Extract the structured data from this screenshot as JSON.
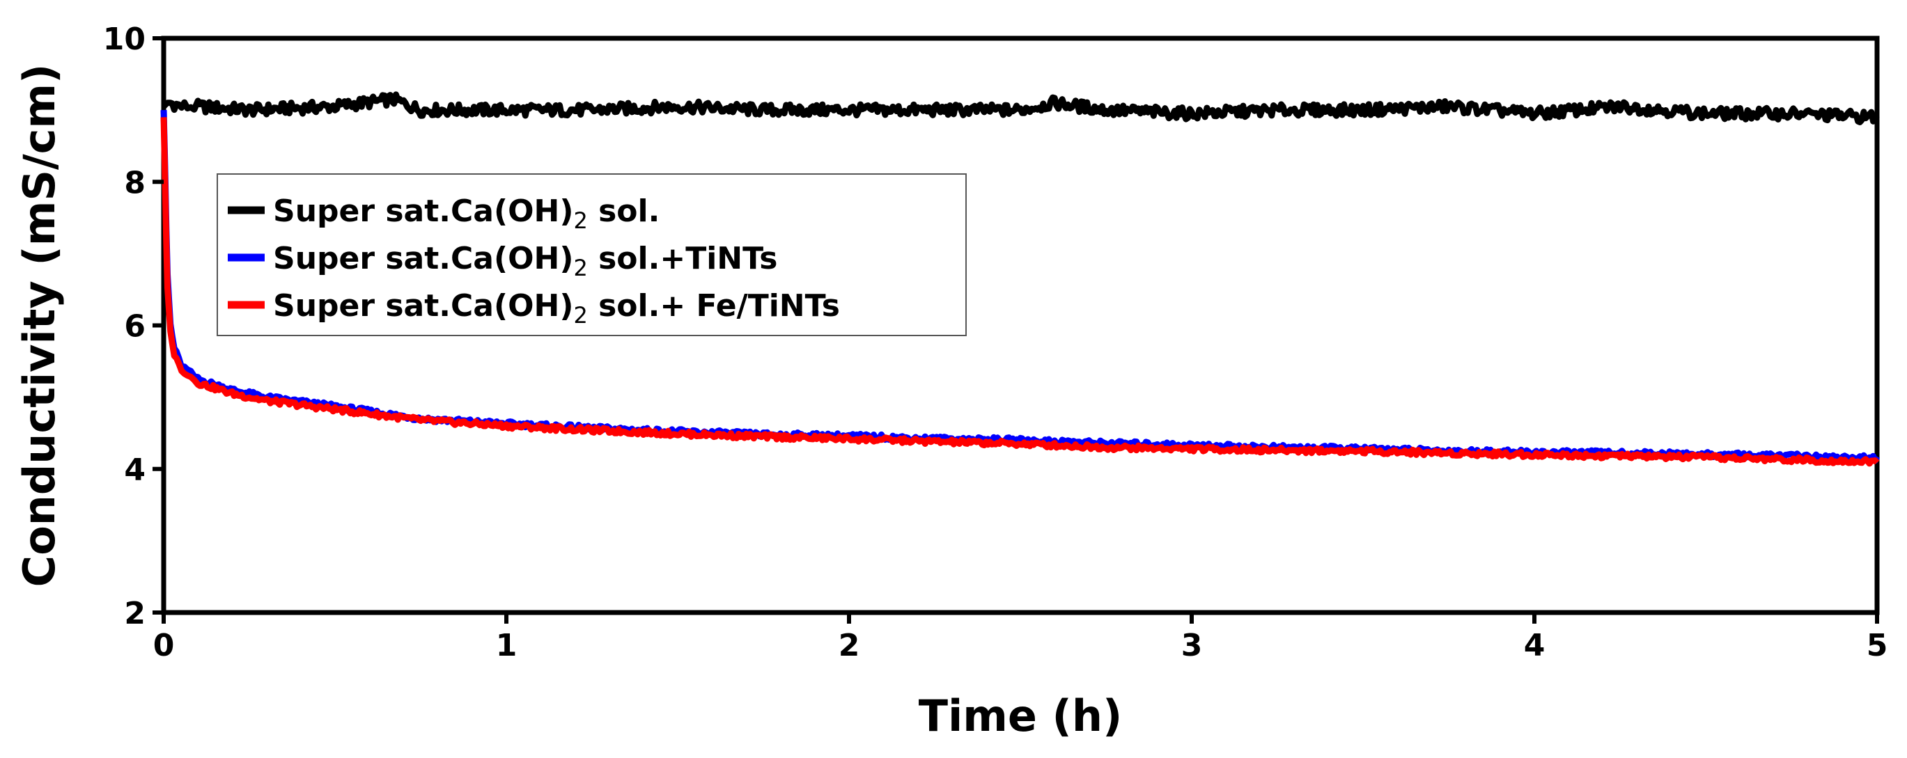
{
  "chart_data": {
    "type": "line",
    "xlabel": "Time (h)",
    "ylabel": "Conductivity (mS/cm)",
    "xlim": [
      0,
      5
    ],
    "ylim": [
      2,
      10
    ],
    "xticks": [
      0,
      1,
      2,
      3,
      4,
      5
    ],
    "yticks": [
      2,
      4,
      6,
      8,
      10
    ],
    "xtick_labels": [
      "0",
      "1",
      "2",
      "3",
      "4",
      "5"
    ],
    "ytick_labels": [
      "2",
      "4",
      "6",
      "8",
      "10"
    ],
    "grid": false,
    "legend_position": "upper-left",
    "series": [
      {
        "legend_parts": [
          "Super sat.Ca(OH)",
          "2",
          " sol."
        ],
        "color": "#000000",
        "x": [
          0.0,
          0.01,
          0.02,
          0.05,
          0.1,
          0.25,
          0.5,
          0.67,
          0.75,
          1.0,
          1.25,
          1.5,
          1.75,
          2.0,
          2.25,
          2.5,
          2.6,
          2.75,
          3.0,
          3.25,
          3.5,
          3.75,
          4.0,
          4.25,
          4.5,
          4.75,
          5.0
        ],
        "values": [
          9.05,
          9.1,
          9.1,
          9.05,
          9.05,
          9.0,
          9.05,
          9.15,
          9.0,
          9.0,
          9.0,
          9.05,
          9.0,
          9.0,
          9.0,
          9.0,
          9.1,
          9.0,
          8.95,
          9.0,
          9.0,
          9.05,
          8.95,
          9.05,
          8.95,
          8.95,
          8.9
        ]
      },
      {
        "legend_parts": [
          "Super sat.Ca(OH)",
          "2",
          " sol.+TiNTs"
        ],
        "color": "#0000ff",
        "x": [
          0.0,
          0.005,
          0.01,
          0.02,
          0.03,
          0.05,
          0.1,
          0.2,
          0.3,
          0.5,
          0.75,
          1.0,
          1.25,
          1.5,
          1.75,
          2.0,
          2.25,
          2.5,
          2.75,
          3.0,
          3.25,
          3.5,
          3.75,
          4.0,
          4.25,
          4.5,
          4.75,
          5.0
        ],
        "values": [
          9.0,
          8.0,
          6.8,
          6.0,
          5.7,
          5.45,
          5.25,
          5.1,
          5.0,
          4.87,
          4.7,
          4.63,
          4.57,
          4.52,
          4.48,
          4.46,
          4.42,
          4.4,
          4.36,
          4.33,
          4.3,
          4.28,
          4.25,
          4.23,
          4.22,
          4.2,
          4.18,
          4.15
        ]
      },
      {
        "legend_parts": [
          "Super sat.Ca(OH)",
          "2",
          " sol.+ Fe/TiNTs"
        ],
        "color": "#ff0000",
        "x": [
          0.0,
          0.005,
          0.01,
          0.02,
          0.03,
          0.05,
          0.1,
          0.2,
          0.3,
          0.5,
          0.75,
          1.0,
          1.25,
          1.5,
          1.75,
          2.0,
          2.25,
          2.5,
          2.75,
          3.0,
          3.25,
          3.5,
          3.75,
          4.0,
          4.25,
          4.5,
          4.75,
          5.0
        ],
        "values": [
          8.9,
          7.8,
          6.6,
          5.9,
          5.6,
          5.4,
          5.2,
          5.05,
          4.95,
          4.83,
          4.68,
          4.6,
          4.54,
          4.49,
          4.45,
          4.42,
          4.38,
          4.35,
          4.3,
          4.28,
          4.26,
          4.25,
          4.22,
          4.2,
          4.18,
          4.16,
          4.13,
          4.1
        ]
      }
    ]
  }
}
